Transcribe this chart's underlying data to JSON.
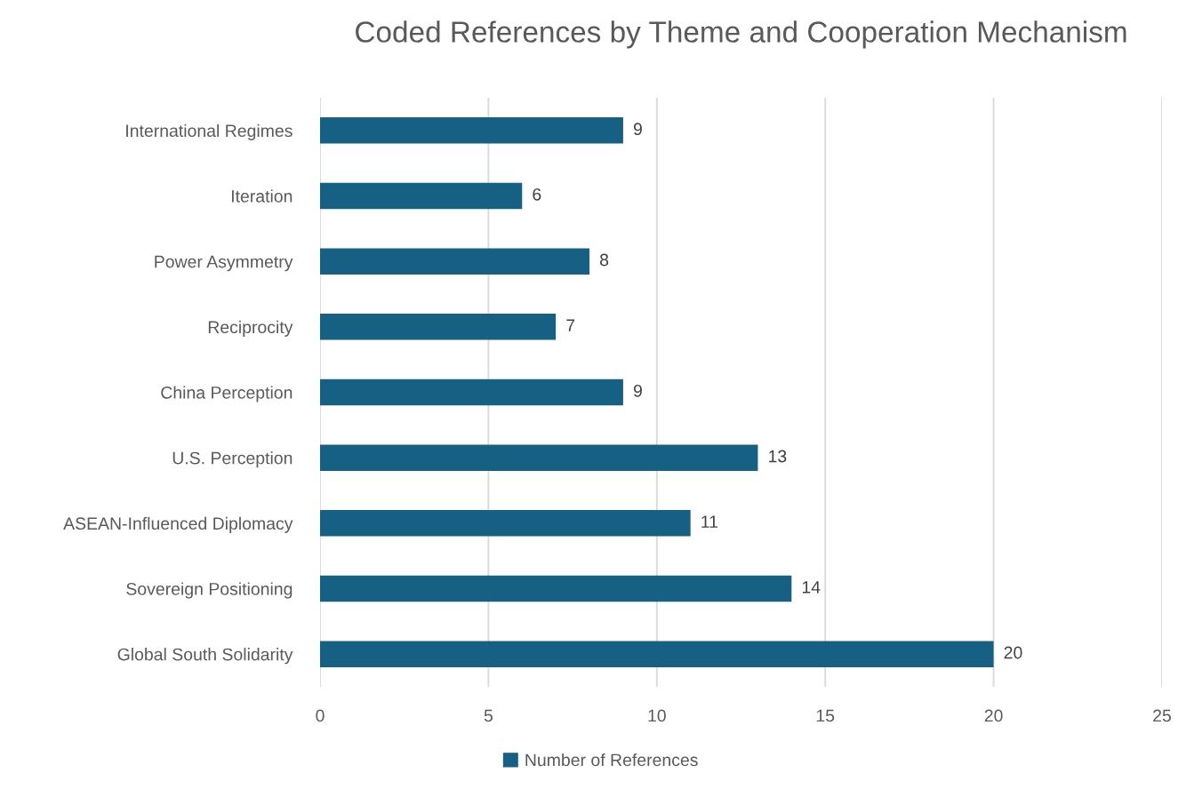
{
  "chart_data": {
    "type": "bar",
    "orientation": "horizontal",
    "title": "Coded References by Theme and Cooperation Mechanism",
    "categories": [
      "International Regimes",
      "Iteration",
      "Power Asymmetry",
      "Reciprocity",
      "China Perception",
      "U.S. Perception",
      "ASEAN-Influenced Diplomacy",
      "Sovereign Positioning",
      "Global South Solidarity"
    ],
    "series": [
      {
        "name": "Number of References",
        "color": "#166083",
        "values": [
          9,
          6,
          8,
          7,
          9,
          13,
          11,
          14,
          20
        ]
      }
    ],
    "xlim": [
      0,
      25
    ],
    "xticks": [
      0,
      5,
      10,
      15,
      20,
      25
    ],
    "grid": "x",
    "legend": "bottom",
    "data_labels": true
  }
}
